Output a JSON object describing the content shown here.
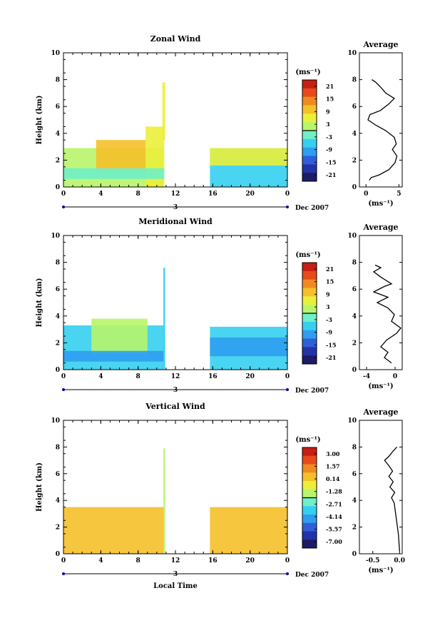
{
  "chart_data": [
    {
      "type": "heatmap",
      "title": "Zonal Wind",
      "ylabel": "Height (km)",
      "xlim": [
        0,
        24
      ],
      "ylim": [
        0,
        10
      ],
      "x_ticks": [
        "0",
        "4",
        "8",
        "12",
        "16",
        "20",
        "0"
      ],
      "y_ticks": [
        "0",
        "2",
        "4",
        "6",
        "8",
        "10"
      ],
      "date_day": "3",
      "date_label": "Dec 2007",
      "colorbar_unit": "(ms⁻¹)",
      "colorbar_ticks": [
        "21",
        "15",
        "9",
        "3",
        "-3",
        "-9",
        "-15",
        "-21"
      ],
      "data_blocks": [
        {
          "x0": 0,
          "x1": 10.8,
          "y0": 0,
          "y1": 2.9,
          "value": 3
        },
        {
          "x0": 3.5,
          "x1": 8.8,
          "y0": 1.2,
          "y1": 3.5,
          "value": 7
        },
        {
          "x0": 8.8,
          "x1": 10.8,
          "y0": 0,
          "y1": 4.5,
          "value": 4
        },
        {
          "x0": 0,
          "x1": 10.8,
          "y0": 0.6,
          "y1": 1.4,
          "value": -3
        },
        {
          "x0": 10.6,
          "x1": 10.9,
          "y0": 3.5,
          "y1": 7.8,
          "value": 6
        },
        {
          "x0": 15.7,
          "x1": 24,
          "y0": 0,
          "y1": 2.9,
          "value": -4
        },
        {
          "x0": 15.7,
          "x1": 24,
          "y0": 1.6,
          "y1": 2.9,
          "value": 4
        }
      ],
      "avg": {
        "title": "Average",
        "unit": "(ms⁻¹)",
        "xlim": [
          -1,
          5.5
        ],
        "x_ticks": [
          "0",
          "5"
        ],
        "y_ticks": [
          "0",
          "2",
          "4",
          "6",
          "8",
          "10"
        ],
        "profile": [
          [
            0.5,
            0.5
          ],
          [
            0.8,
            0.7
          ],
          [
            2,
            0.9
          ],
          [
            3.5,
            1.3
          ],
          [
            4.4,
            1.8
          ],
          [
            4.7,
            2.3
          ],
          [
            4.0,
            2.8
          ],
          [
            4.6,
            3.2
          ],
          [
            4.3,
            3.7
          ],
          [
            3.0,
            4.2
          ],
          [
            1.5,
            4.6
          ],
          [
            0.3,
            5.0
          ],
          [
            0.6,
            5.4
          ],
          [
            2.2,
            5.7
          ],
          [
            3.5,
            6.2
          ],
          [
            4.3,
            6.6
          ],
          [
            3.0,
            7.0
          ],
          [
            2.3,
            7.4
          ],
          [
            1.5,
            7.8
          ],
          [
            0.9,
            8.0
          ]
        ]
      }
    },
    {
      "type": "heatmap",
      "title": "Meridional Wind",
      "ylabel": "Height (km)",
      "xlim": [
        0,
        24
      ],
      "ylim": [
        0,
        10
      ],
      "x_ticks": [
        "0",
        "4",
        "8",
        "12",
        "16",
        "20",
        "0"
      ],
      "y_ticks": [
        "0",
        "2",
        "4",
        "6",
        "8",
        "10"
      ],
      "date_day": "3",
      "date_label": "Dec 2007",
      "colorbar_unit": "(ms⁻¹)",
      "colorbar_ticks": [
        "21",
        "15",
        "9",
        "3",
        "-3",
        "-9",
        "-15",
        "-21"
      ],
      "data_blocks": [
        {
          "x0": 0,
          "x1": 10.8,
          "y0": 0,
          "y1": 3.3,
          "value": -4
        },
        {
          "x0": 3,
          "x1": 9,
          "y0": 1.2,
          "y1": 3.8,
          "value": 1
        },
        {
          "x0": 0,
          "x1": 10.8,
          "y0": 0.6,
          "y1": 1.4,
          "value": -8
        },
        {
          "x0": 10.7,
          "x1": 10.9,
          "y0": 0,
          "y1": 7.6,
          "value": -5
        },
        {
          "x0": 15.7,
          "x1": 24,
          "y0": 0,
          "y1": 3.2,
          "value": -5
        },
        {
          "x0": 15.7,
          "x1": 24,
          "y0": 1.0,
          "y1": 2.4,
          "value": -9
        }
      ],
      "avg": {
        "title": "Average",
        "unit": "(ms⁻¹)",
        "xlim": [
          -5,
          1
        ],
        "x_ticks": [
          "-4",
          "0"
        ],
        "y_ticks": [
          "0",
          "2",
          "4",
          "6",
          "8",
          "10"
        ],
        "profile": [
          [
            -0.5,
            0.5
          ],
          [
            -1.5,
            0.9
          ],
          [
            -1.0,
            1.3
          ],
          [
            -2.0,
            1.7
          ],
          [
            -1.2,
            2.2
          ],
          [
            0.2,
            2.7
          ],
          [
            0.8,
            3.1
          ],
          [
            -0.5,
            3.6
          ],
          [
            -0.1,
            4.1
          ],
          [
            -1.0,
            4.6
          ],
          [
            -2.5,
            5.0
          ],
          [
            -1.0,
            5.4
          ],
          [
            -3.0,
            5.8
          ],
          [
            -1.5,
            6.2
          ],
          [
            -0.5,
            6.4
          ],
          [
            -2.0,
            6.9
          ],
          [
            -3.0,
            7.3
          ],
          [
            -2.0,
            7.6
          ],
          [
            -2.8,
            7.8
          ]
        ]
      }
    },
    {
      "type": "heatmap",
      "title": "Vertical Wind",
      "ylabel": "Height (km)",
      "xlabel": "Local Time",
      "xlim": [
        0,
        24
      ],
      "ylim": [
        0,
        10
      ],
      "x_ticks": [
        "0",
        "4",
        "8",
        "12",
        "16",
        "20",
        "0"
      ],
      "y_ticks": [
        "0",
        "2",
        "4",
        "6",
        "8",
        "10"
      ],
      "date_day": "3",
      "date_label": "Dec 2007",
      "colorbar_unit": "(ms⁻¹)",
      "colorbar_ticks": [
        "3.00",
        "1.57",
        "0.14",
        "-1.28",
        "-2.71",
        "-4.14",
        "-5.57",
        "-7.00"
      ],
      "data_blocks": [
        {
          "x0": 0,
          "x1": 10.8,
          "y0": 0,
          "y1": 3.5,
          "value": 0.4
        },
        {
          "x0": 10.7,
          "x1": 10.9,
          "y0": 0,
          "y1": 7.9,
          "value": -2.0
        },
        {
          "x0": 15.7,
          "x1": 24,
          "y0": 0,
          "y1": 3.5,
          "value": 0.4
        }
      ],
      "avg": {
        "title": "Average",
        "unit": "(ms⁻¹)",
        "xlim": [
          -0.75,
          0.05
        ],
        "x_ticks": [
          "-0.5",
          "0.0"
        ],
        "y_ticks": [
          "0",
          "2",
          "4",
          "6",
          "8",
          "10"
        ],
        "profile": [
          [
            0,
            0.2
          ],
          [
            -0.01,
            0.8
          ],
          [
            -0.02,
            1.4
          ],
          [
            -0.04,
            2.0
          ],
          [
            -0.06,
            2.6
          ],
          [
            -0.08,
            3.2
          ],
          [
            -0.1,
            3.8
          ],
          [
            -0.15,
            4.2
          ],
          [
            -0.09,
            4.6
          ],
          [
            -0.18,
            5.0
          ],
          [
            -0.12,
            5.4
          ],
          [
            -0.2,
            5.8
          ],
          [
            -0.13,
            6.2
          ],
          [
            -0.2,
            6.6
          ],
          [
            -0.28,
            7.0
          ],
          [
            -0.2,
            7.3
          ],
          [
            -0.12,
            7.7
          ],
          [
            -0.05,
            8.0
          ]
        ]
      }
    }
  ]
}
